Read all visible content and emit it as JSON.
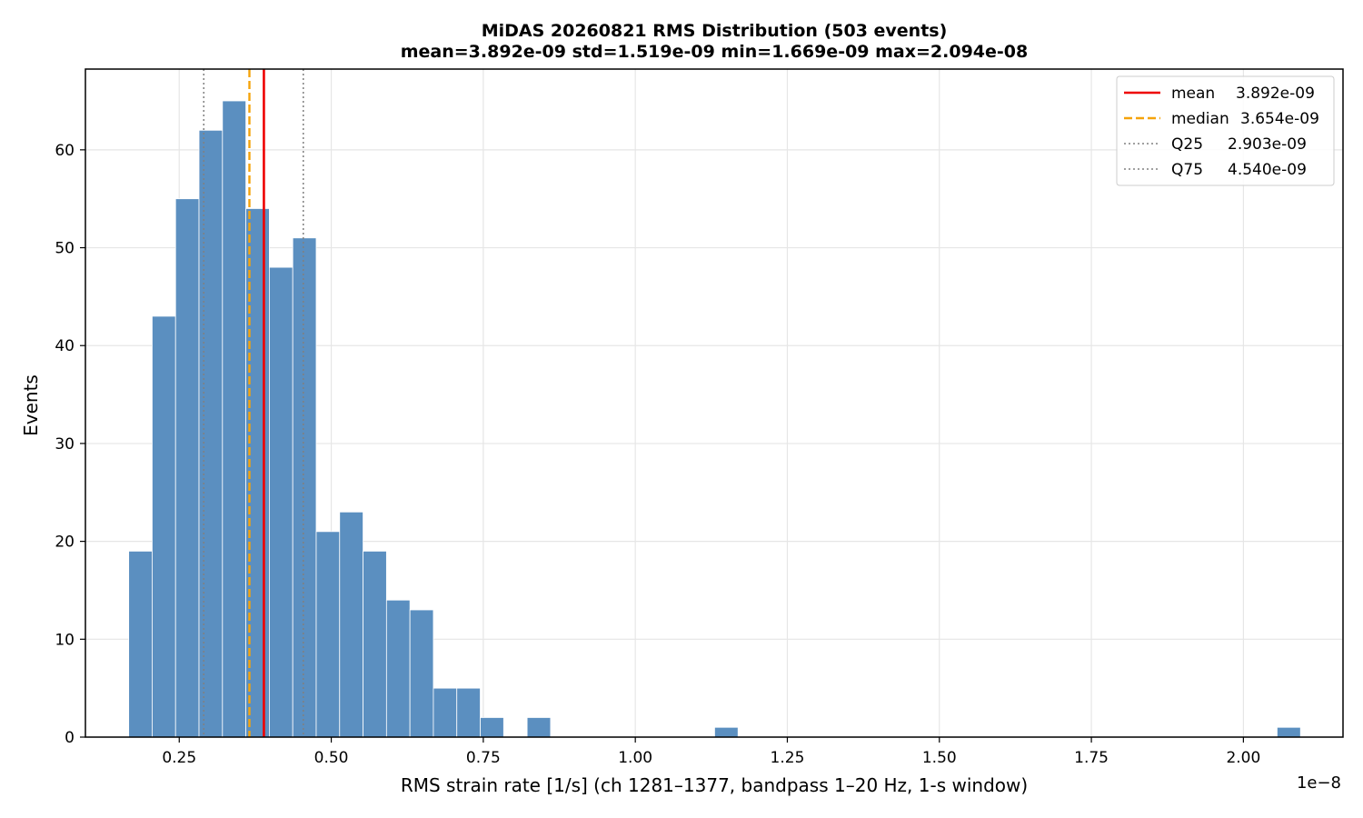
{
  "chart_data": {
    "type": "bar",
    "title_line1": "MiDAS 20260821  RMS Distribution  (503 events)",
    "title_line2": "mean=3.892e-09  std=1.519e-09  min=1.669e-09  max=2.094e-08",
    "xlabel": "RMS strain rate [1/s]  (ch 1281–1377, bandpass 1–20 Hz, 1-s window)",
    "ylabel": "Events",
    "x_offset_label": "1e−8",
    "xlim": [
      0.0957,
      2.1638
    ],
    "ylim": [
      0,
      68.25
    ],
    "grid": true,
    "legend_position": "top-right",
    "x_ticks": [
      {
        "value": 0.25,
        "label": "0.25"
      },
      {
        "value": 0.5,
        "label": "0.50"
      },
      {
        "value": 0.75,
        "label": "0.75"
      },
      {
        "value": 1.0,
        "label": "1.00"
      },
      {
        "value": 1.25,
        "label": "1.25"
      },
      {
        "value": 1.5,
        "label": "1.50"
      },
      {
        "value": 1.75,
        "label": "1.75"
      },
      {
        "value": 2.0,
        "label": "2.00"
      }
    ],
    "y_ticks": [
      {
        "value": 0,
        "label": "0"
      },
      {
        "value": 10,
        "label": "10"
      },
      {
        "value": 20,
        "label": "20"
      },
      {
        "value": 30,
        "label": "30"
      },
      {
        "value": 40,
        "label": "40"
      },
      {
        "value": 50,
        "label": "50"
      },
      {
        "value": 60,
        "label": "60"
      }
    ],
    "bin_start": 0.1669,
    "bin_width": 0.03854,
    "counts": [
      19,
      43,
      55,
      62,
      65,
      54,
      48,
      51,
      21,
      23,
      19,
      14,
      13,
      5,
      5,
      2,
      0,
      2,
      0,
      0,
      0,
      0,
      0,
      0,
      0,
      1,
      0,
      0,
      0,
      0,
      0,
      0,
      0,
      0,
      0,
      0,
      0,
      0,
      0,
      0,
      0,
      0,
      0,
      0,
      0,
      0,
      0,
      0,
      0,
      1
    ],
    "bar_color": "#5b8fc0",
    "lines": [
      {
        "name": "mean",
        "label_name": "mean",
        "label_value": "3.892e-09",
        "x": 0.3892,
        "color": "#ee0000",
        "style": "solid"
      },
      {
        "name": "median",
        "label_name": "median",
        "label_value": "3.654e-09",
        "x": 0.3654,
        "color": "#f5a30a",
        "style": "dashed"
      },
      {
        "name": "Q25",
        "label_name": "Q25",
        "label_value": "2.903e-09",
        "x": 0.2903,
        "color": "#808080",
        "style": "dotted"
      },
      {
        "name": "Q75",
        "label_name": "Q75",
        "label_value": "4.540e-09",
        "x": 0.454,
        "color": "#808080",
        "style": "dotted"
      }
    ]
  }
}
